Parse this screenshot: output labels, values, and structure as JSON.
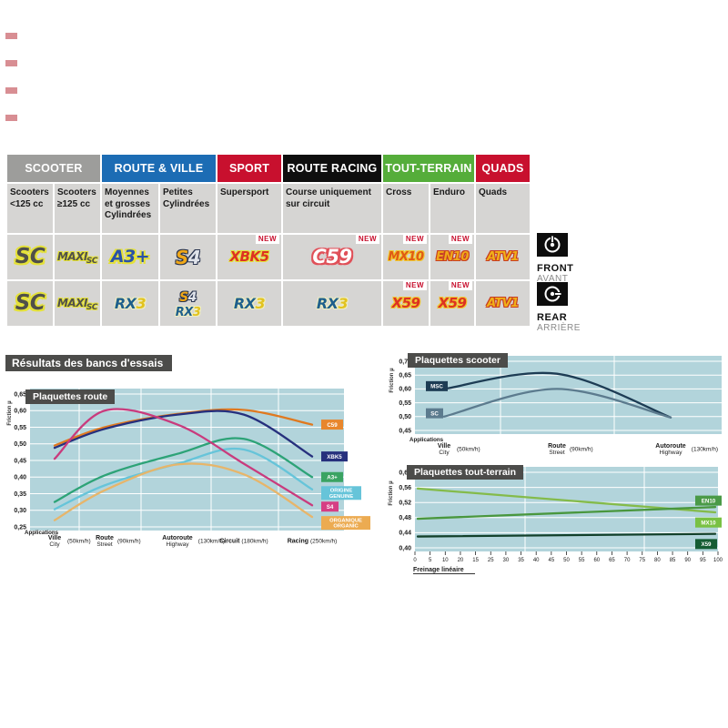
{
  "results_title": "Résultats des bancs d'essais",
  "legend": {
    "front": {
      "label": "FRONT",
      "sub": "AVANT"
    },
    "rear": {
      "label": "REAR",
      "sub": "ARRIÈRE"
    }
  },
  "table": {
    "new_label": "NEW",
    "header_groups": [
      {
        "label": "SCOOTER",
        "bg": "#9d9d9b",
        "cols": 2
      },
      {
        "label": "ROUTE & VILLE",
        "bg": "#1c6cb4",
        "cols": 2
      },
      {
        "label": "SPORT",
        "bg": "#c8102e",
        "cols": 1
      },
      {
        "label": "ROUTE RACING",
        "bg": "#0e0e0e",
        "cols": 1
      },
      {
        "label": "TOUT-TERRAIN",
        "bg": "#55ad3a",
        "cols": 2
      },
      {
        "label": "QUADS",
        "bg": "#c8102e",
        "cols": 1
      }
    ],
    "subheaders": [
      "Scooters <125 cc",
      "Scooters ≥125 cc",
      "Moyennes et grosses Cylindrées",
      "Petites Cylindrées",
      "Supersport",
      "Course uniquement sur circuit",
      "Cross",
      "Enduro",
      "Quads"
    ],
    "rows": [
      {
        "side": "FRONT",
        "cells": [
          {
            "new": false,
            "logos": [
              {
                "name": "SC",
                "style": "sc",
                "text": "SC"
              }
            ]
          },
          {
            "new": false,
            "logos": [
              {
                "name": "MAXI SC",
                "style": "maxisc",
                "segments": [
                  {
                    "text": "MAXI",
                    "style": "maxi"
                  },
                  {
                    "text": "SC",
                    "style": "maxisc-sc"
                  }
                ]
              }
            ]
          },
          {
            "new": false,
            "logos": [
              {
                "name": "A3+",
                "style": "a3",
                "text": "A3+"
              }
            ]
          },
          {
            "new": false,
            "logos": [
              {
                "name": "S4",
                "style": "s4",
                "segments": [
                  {
                    "text": "S",
                    "style": "s4-s"
                  },
                  {
                    "text": "4",
                    "style": "s4-4"
                  }
                ]
              }
            ]
          },
          {
            "new": true,
            "logos": [
              {
                "name": "XBK5",
                "style": "xbk5",
                "text": "XBK5"
              }
            ]
          },
          {
            "new": true,
            "logos": [
              {
                "name": "C59",
                "style": "c59",
                "text": "C59"
              }
            ]
          },
          {
            "new": true,
            "logos": [
              {
                "name": "MX10",
                "style": "mx10",
                "text": "MX10"
              }
            ]
          },
          {
            "new": true,
            "logos": [
              {
                "name": "EN10",
                "style": "en10",
                "text": "EN10"
              }
            ]
          },
          {
            "new": false,
            "logos": [
              {
                "name": "ATV1",
                "style": "atv1",
                "text": "ATV1"
              }
            ]
          }
        ]
      },
      {
        "side": "REAR",
        "cells": [
          {
            "new": false,
            "logos": [
              {
                "name": "SC",
                "style": "sc",
                "text": "SC"
              }
            ]
          },
          {
            "new": false,
            "logos": [
              {
                "name": "MAXI SC",
                "style": "maxisc",
                "segments": [
                  {
                    "text": "MAXI",
                    "style": "maxi"
                  },
                  {
                    "text": "SC",
                    "style": "maxisc-sc"
                  }
                ]
              }
            ]
          },
          {
            "new": false,
            "logos": [
              {
                "name": "RX3",
                "style": "rx3",
                "segments": [
                  {
                    "text": "RX",
                    "style": "rx3-rx"
                  },
                  {
                    "text": "3",
                    "style": "rx3-3"
                  }
                ]
              }
            ]
          },
          {
            "new": false,
            "logos": [
              {
                "name": "S4",
                "style": "s4",
                "small": true,
                "segments": [
                  {
                    "text": "S",
                    "style": "s4-s"
                  },
                  {
                    "text": "4",
                    "style": "s4-4"
                  }
                ]
              },
              {
                "name": "RX3",
                "style": "rx3",
                "small": true,
                "segments": [
                  {
                    "text": "RX",
                    "style": "rx3-rx"
                  },
                  {
                    "text": "3",
                    "style": "rx3-3"
                  }
                ]
              }
            ]
          },
          {
            "new": false,
            "logos": [
              {
                "name": "RX3",
                "style": "rx3",
                "segments": [
                  {
                    "text": "RX",
                    "style": "rx3-rx"
                  },
                  {
                    "text": "3",
                    "style": "rx3-3"
                  }
                ]
              }
            ]
          },
          {
            "new": false,
            "logos": [
              {
                "name": "RX3",
                "style": "rx3",
                "segments": [
                  {
                    "text": "RX",
                    "style": "rx3-rx"
                  },
                  {
                    "text": "3",
                    "style": "rx3-3"
                  }
                ]
              }
            ]
          },
          {
            "new": true,
            "logos": [
              {
                "name": "X59",
                "style": "x59",
                "text": "X59"
              }
            ]
          },
          {
            "new": true,
            "logos": [
              {
                "name": "X59",
                "style": "x59",
                "text": "X59"
              }
            ]
          },
          {
            "new": false,
            "logos": [
              {
                "name": "ATV1",
                "style": "atv1",
                "text": "ATV1"
              }
            ]
          }
        ]
      }
    ]
  },
  "chart_data": [
    {
      "id": "route",
      "type": "line",
      "title": "Plaquettes route",
      "ylabel": "Friction µ",
      "xlabel": "Applications",
      "ylim": [
        0.25,
        0.65
      ],
      "ystep": 0.05,
      "grid": true,
      "legend_position": "right",
      "categories": [
        {
          "top": "Ville",
          "bottom": "City",
          "speed": "(50km/h)"
        },
        {
          "top": "Route",
          "bottom": "Street",
          "speed": "(90km/h)"
        },
        {
          "top": "Autoroute",
          "bottom": "Highway",
          "speed": "(130km/h)"
        },
        {
          "top": "Circuit",
          "speed": "(180km/h)"
        },
        {
          "top": "Racing",
          "speed": "(250km/h)"
        }
      ],
      "series": [
        {
          "name": "C59",
          "color": "#e0791f",
          "values": [
            0.495,
            0.55,
            0.59,
            0.602,
            0.558
          ],
          "badge": {
            "lines": [
              "C59"
            ],
            "bg": "#e8862c",
            "fg": "#ffffff",
            "mu": 0.558
          }
        },
        {
          "name": "XBK5",
          "color": "#26307d",
          "values": [
            0.488,
            0.545,
            0.588,
            0.588,
            0.462
          ],
          "badge": {
            "lines": [
              "XBK5"
            ],
            "bg": "#26307d",
            "fg": "#ffffff",
            "mu": 0.462
          }
        },
        {
          "name": "A3+",
          "color": "#2da377",
          "values": [
            0.325,
            0.405,
            0.47,
            0.515,
            0.4
          ],
          "badge": {
            "lines": [
              "A3+"
            ],
            "bg": "#3aa362",
            "fg": "#ffffff",
            "mu": 0.4
          }
        },
        {
          "name": "ORIGINE",
          "color": "#66c4d9",
          "values": [
            0.303,
            0.375,
            0.44,
            0.483,
            0.363
          ],
          "badge": {
            "lines": [
              "ORIGINE",
              "GENUINE"
            ],
            "bg": "#66c4d9",
            "fg": "#ffffff",
            "mu": 0.352
          }
        },
        {
          "name": "S4",
          "color": "#c93b7d",
          "values": [
            0.455,
            0.6,
            0.558,
            0.44,
            0.315
          ],
          "badge": {
            "lines": [
              "S4"
            ],
            "bg": "#d63e84",
            "fg": "#ffffff",
            "mu": 0.311
          }
        },
        {
          "name": "ORGANIQUE",
          "color": "#e7b56a",
          "values": [
            0.27,
            0.36,
            0.438,
            0.408,
            0.28
          ],
          "badge": {
            "lines": [
              "ORGANIQUE",
              "ORGANIC"
            ],
            "bg": "#ecab51",
            "fg": "#ffffff",
            "mu": 0.262
          }
        }
      ]
    },
    {
      "id": "scooter",
      "type": "line",
      "title": "Plaquettes scooter",
      "ylabel": "Friction µ",
      "xlabel": "Applications",
      "ylim": [
        0.45,
        0.7
      ],
      "ystep": 0.05,
      "grid": true,
      "legend_position": "left",
      "categories": [
        {
          "top": "Ville",
          "bottom": "City",
          "speed": "(50km/h)"
        },
        {
          "top": "Route",
          "bottom": "Street",
          "speed": "(90km/h)"
        },
        {
          "top": "Autoroute",
          "bottom": "Highway",
          "speed": "(130km/h)"
        }
      ],
      "series": [
        {
          "name": "MSC",
          "color": "#1d3c54",
          "values": [
            0.6,
            0.655,
            0.497
          ],
          "badge": {
            "lines": [
              "MSC"
            ],
            "bg": "#1d3c54",
            "fg": "#ffffff",
            "mu": 0.61,
            "x": 42
          }
        },
        {
          "name": "SC",
          "color": "#5c7b8e",
          "values": [
            0.5,
            0.6,
            0.497
          ],
          "badge": {
            "lines": [
              "SC"
            ],
            "bg": "#5c7b8e",
            "fg": "#ffffff",
            "mu": 0.512,
            "x": 42
          }
        }
      ]
    },
    {
      "id": "terrain",
      "type": "line",
      "title": "Plaquettes tout-terrain",
      "ylabel": "Friction µ",
      "xlabel": "Freinage linéaire",
      "ylim": [
        0.4,
        0.6
      ],
      "ystep": 0.04,
      "grid": true,
      "legend_position": "right",
      "xticks": [
        "0",
        "5",
        "10",
        "20",
        "15",
        "25",
        "30",
        "35",
        "40",
        "45",
        "50",
        "55",
        "60",
        "65",
        "70",
        "75",
        "80",
        "85",
        "90",
        "95",
        "100"
      ],
      "series": [
        {
          "name": "MX10",
          "color": "#84bb4a",
          "values": [
            0.557,
            0.494
          ],
          "badge": {
            "lines": [
              "MX10"
            ],
            "bg": "#79c143",
            "fg": "#ffffff",
            "mu": 0.467
          }
        },
        {
          "name": "EN10",
          "color": "#49973e",
          "values": [
            0.477,
            0.508
          ],
          "badge": {
            "lines": [
              "EN10"
            ],
            "bg": "#4a9a47",
            "fg": "#ffffff",
            "mu": 0.525
          }
        },
        {
          "name": "X59",
          "color": "#12402a",
          "values": [
            0.43,
            0.437
          ],
          "badge": {
            "lines": [
              "X59"
            ],
            "bg": "#155c33",
            "fg": "#ffffff",
            "mu": 0.41
          }
        }
      ]
    }
  ]
}
